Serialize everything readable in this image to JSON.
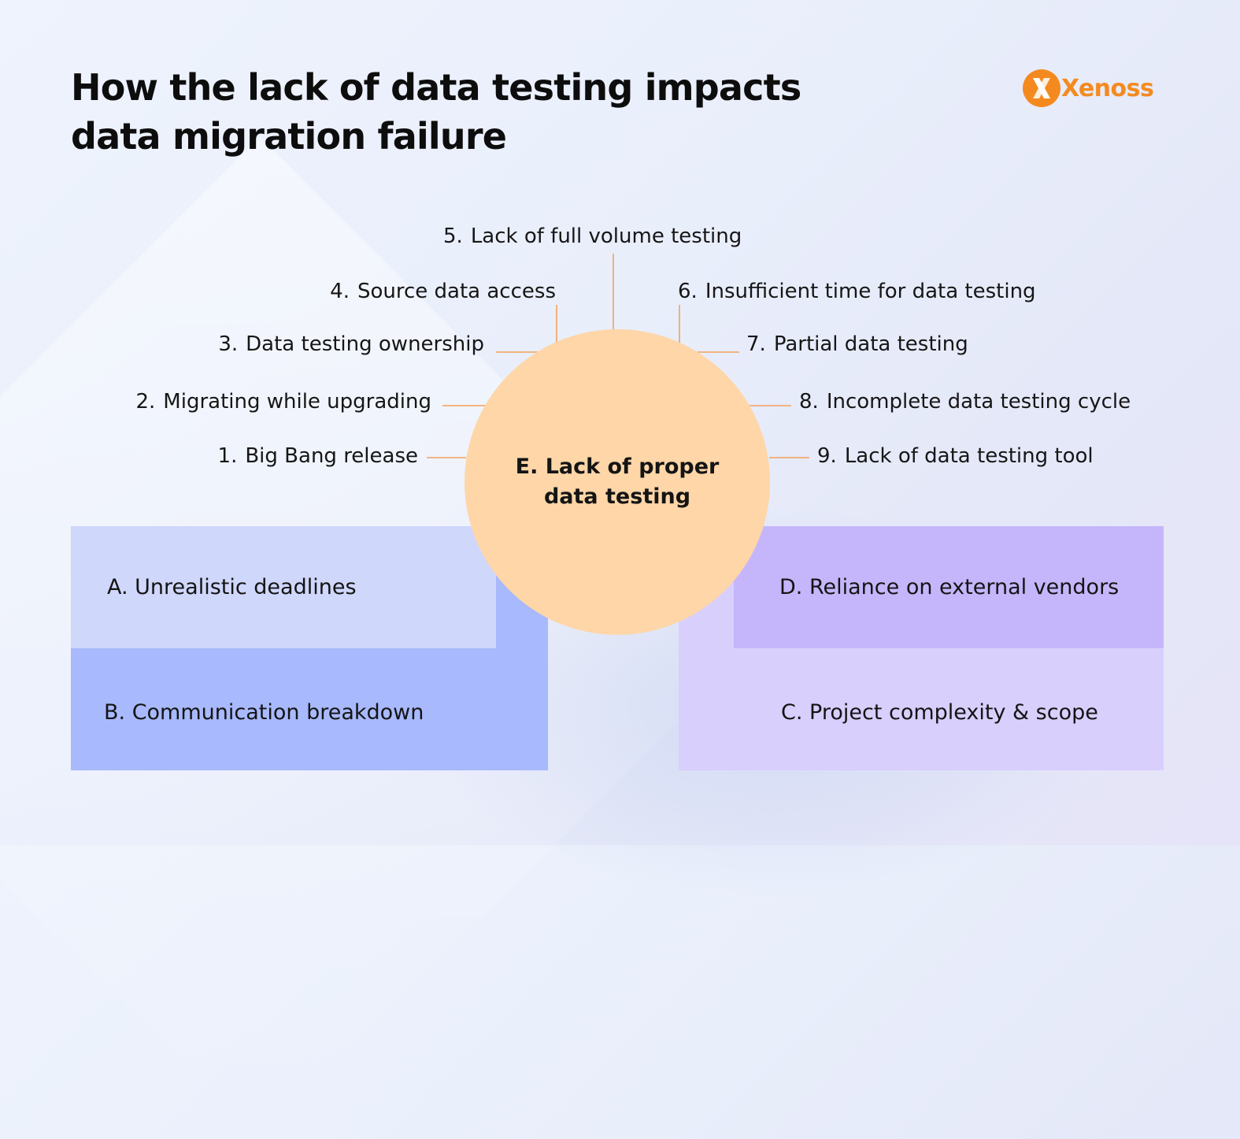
{
  "title": "How the lack of data testing impacts data migration failure",
  "logo": {
    "text": "Xenoss",
    "color": "#f48a1f"
  },
  "center": {
    "label": "E. Lack of proper data testing",
    "color": "#fed6a8"
  },
  "factors": [
    {
      "num": "1.",
      "text": "Big Bang release"
    },
    {
      "num": "2.",
      "text": "Migrating while upgrading"
    },
    {
      "num": "3.",
      "text": "Data testing ownership"
    },
    {
      "num": "4.",
      "text": "Source data access"
    },
    {
      "num": "5.",
      "text": "Lack of full volume testing"
    },
    {
      "num": "6.",
      "text": "Insufficient time for data testing"
    },
    {
      "num": "7.",
      "text": "Partial data testing"
    },
    {
      "num": "8.",
      "text": "Incomplete data testing cycle"
    },
    {
      "num": "9.",
      "text": "Lack of data testing tool"
    }
  ],
  "categories": {
    "a": {
      "label": "A. Unrealistic deadlines",
      "color": "#cfd7fb"
    },
    "b": {
      "label": "B. Communication breakdown",
      "color": "#a8b9fd"
    },
    "c": {
      "label": "C. Project complexity & scope",
      "color": "#d8cffd"
    },
    "d": {
      "label": "D. Reliance on external vendors",
      "color": "#c5b6fb"
    }
  },
  "connector_color": "#f3a25a"
}
